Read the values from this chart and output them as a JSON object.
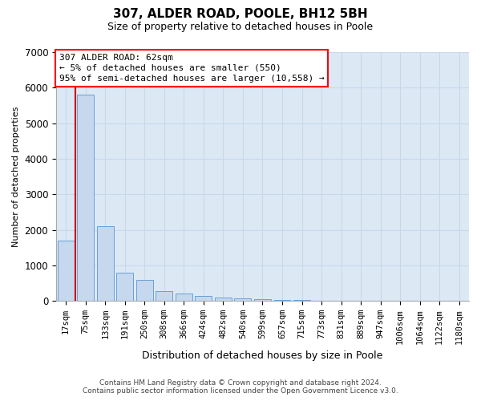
{
  "title": "307, ALDER ROAD, POOLE, BH12 5BH",
  "subtitle": "Size of property relative to detached houses in Poole",
  "xlabel": "Distribution of detached houses by size in Poole",
  "ylabel": "Number of detached properties",
  "bar_color": "#c5d8ee",
  "bar_edge_color": "#6a9fd8",
  "grid_color": "#c8d8ea",
  "background_color": "#dce9f5",
  "annotation_box_text": "307 ALDER ROAD: 62sqm\n← 5% of detached houses are smaller (550)\n95% of semi-detached houses are larger (10,558) →",
  "vline_color": "#cc0000",
  "vline_x": 0.5,
  "footer_line1": "Contains HM Land Registry data © Crown copyright and database right 2024.",
  "footer_line2": "Contains public sector information licensed under the Open Government Licence v3.0.",
  "categories": [
    "17sqm",
    "75sqm",
    "133sqm",
    "191sqm",
    "250sqm",
    "308sqm",
    "366sqm",
    "424sqm",
    "482sqm",
    "540sqm",
    "599sqm",
    "657sqm",
    "715sqm",
    "773sqm",
    "831sqm",
    "889sqm",
    "947sqm",
    "1006sqm",
    "1064sqm",
    "1122sqm",
    "1180sqm"
  ],
  "values": [
    1700,
    5800,
    2100,
    800,
    600,
    280,
    210,
    140,
    95,
    65,
    50,
    30,
    20,
    10,
    6,
    4,
    3,
    2,
    1,
    1,
    0
  ],
  "ylim": [
    0,
    7000
  ],
  "yticks": [
    0,
    1000,
    2000,
    3000,
    4000,
    5000,
    6000,
    7000
  ]
}
